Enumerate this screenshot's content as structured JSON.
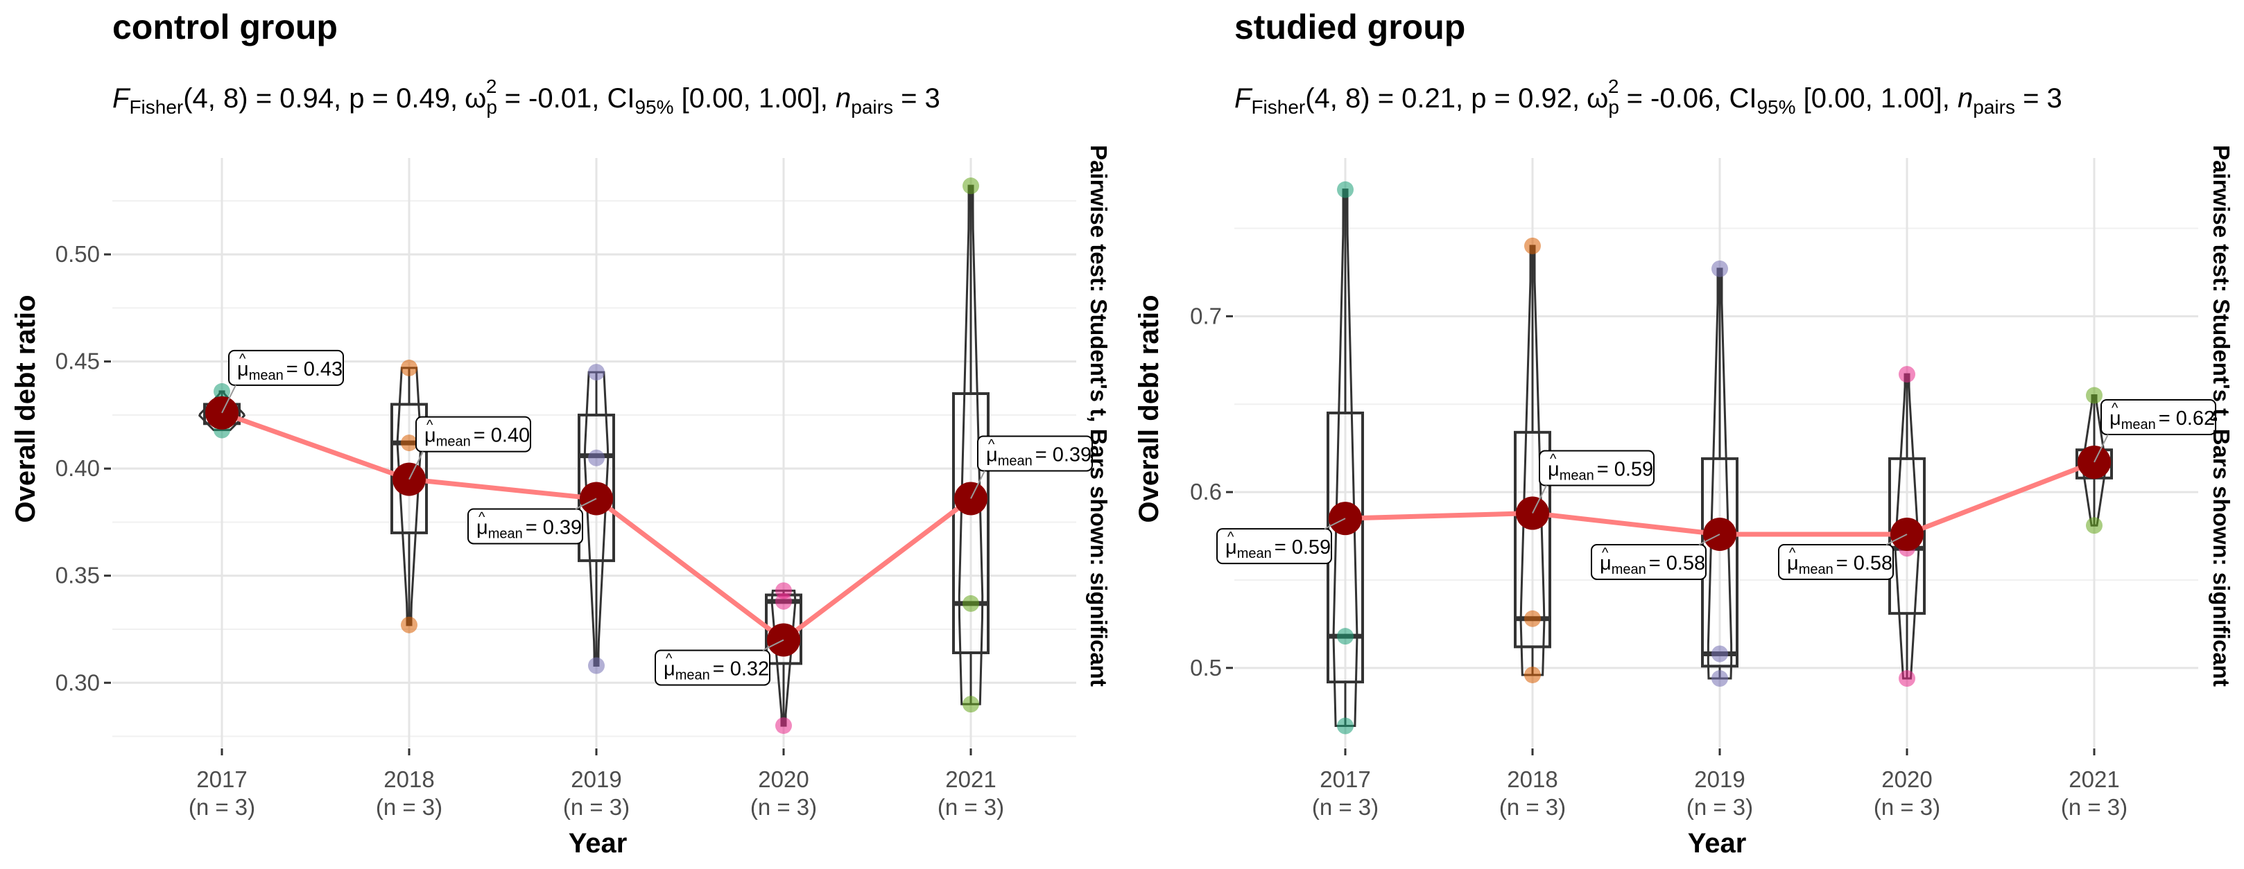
{
  "chart_data": [
    {
      "type": "box-violin-mean",
      "title": "control group",
      "stats": {
        "f_prefix": "F",
        "f_sub": "Fisher",
        "f_args": "(4, 8) = 0.94,",
        "p": " p = 0.49,",
        "omega_sym": "ω",
        "omega_sub": "p",
        "omega_sup": "2",
        "omega_val": " = -0.01,",
        "ci_prefix": " CI",
        "ci_sub": "95%",
        "ci_val": " [0.00, 1.00],",
        "n_prefix": " n",
        "n_sub": "pairs",
        "n_val": " = 3"
      },
      "xlabel": "Year",
      "ylabel": "Overall debt ratio",
      "side_caption": "Pairwise test: Student's t, Bars shown: significant",
      "ylim": [
        0.27,
        0.545
      ],
      "yticks": [
        0.3,
        0.35,
        0.4,
        0.45,
        0.5
      ],
      "yticklabels": [
        "0.30",
        "0.35",
        "0.40",
        "0.45",
        "0.50"
      ],
      "categories": [
        "2017",
        "2018",
        "2019",
        "2020",
        "2021"
      ],
      "n_labels": [
        "(n = 3)",
        "(n = 3)",
        "(n = 3)",
        "(n = 3)",
        "(n = 3)"
      ],
      "mean_label_prefix": "μ",
      "mean_label_sub": "mean",
      "groups": [
        {
          "year": "2017",
          "color": "#1b9e77",
          "points": [
            0.418,
            0.425,
            0.436
          ],
          "q1": 0.421,
          "median": 0.425,
          "q3": 0.43,
          "mean": 0.426,
          "mean_label": "= 0.43",
          "label_side": "right"
        },
        {
          "year": "2018",
          "color": "#d95f02",
          "points": [
            0.327,
            0.412,
            0.447
          ],
          "q1": 0.37,
          "median": 0.412,
          "q3": 0.43,
          "mean": 0.395,
          "mean_label": "= 0.40",
          "label_side": "right"
        },
        {
          "year": "2019",
          "color": "#7570b3",
          "points": [
            0.308,
            0.405,
            0.445
          ],
          "q1": 0.357,
          "median": 0.406,
          "q3": 0.425,
          "mean": 0.386,
          "mean_label": "= 0.39",
          "label_side": "left"
        },
        {
          "year": "2020",
          "color": "#e7298a",
          "points": [
            0.28,
            0.338,
            0.343
          ],
          "q1": 0.309,
          "median": 0.338,
          "q3": 0.341,
          "mean": 0.32,
          "mean_label": "= 0.32",
          "label_side": "left"
        },
        {
          "year": "2021",
          "color": "#66a61e",
          "points": [
            0.29,
            0.337,
            0.532
          ],
          "q1": 0.314,
          "median": 0.337,
          "q3": 0.435,
          "mean": 0.386,
          "mean_label": "= 0.39",
          "label_side": "right"
        }
      ]
    },
    {
      "type": "box-violin-mean",
      "title": "studied group",
      "stats": {
        "f_prefix": "F",
        "f_sub": "Fisher",
        "f_args": "(4, 8) = 0.21,",
        "p": " p = 0.92,",
        "omega_sym": "ω",
        "omega_sub": "p",
        "omega_sup": "2",
        "omega_val": " = -0.06,",
        "ci_prefix": " CI",
        "ci_sub": "95%",
        "ci_val": " [0.00, 1.00],",
        "n_prefix": " n",
        "n_sub": "pairs",
        "n_val": " = 3"
      },
      "xlabel": "Year",
      "ylabel": "Overall debt ratio",
      "side_caption": "Pairwise test: Student's t, Bars shown: significant",
      "ylim": [
        0.455,
        0.79
      ],
      "yticks": [
        0.5,
        0.6,
        0.7
      ],
      "yticklabels": [
        "0.5",
        "0.6",
        "0.7"
      ],
      "categories": [
        "2017",
        "2018",
        "2019",
        "2020",
        "2021"
      ],
      "n_labels": [
        "(n = 3)",
        "(n = 3)",
        "(n = 3)",
        "(n = 3)",
        "(n = 3)"
      ],
      "mean_label_prefix": "μ",
      "mean_label_sub": "mean",
      "groups": [
        {
          "year": "2017",
          "color": "#1b9e77",
          "points": [
            0.467,
            0.518,
            0.772
          ],
          "q1": 0.492,
          "median": 0.518,
          "q3": 0.645,
          "mean": 0.585,
          "mean_label": "= 0.59",
          "label_side": "left"
        },
        {
          "year": "2018",
          "color": "#d95f02",
          "points": [
            0.496,
            0.528,
            0.74
          ],
          "q1": 0.512,
          "median": 0.528,
          "q3": 0.634,
          "mean": 0.588,
          "mean_label": "= 0.59",
          "label_side": "right"
        },
        {
          "year": "2019",
          "color": "#7570b3",
          "points": [
            0.494,
            0.508,
            0.727
          ],
          "q1": 0.501,
          "median": 0.508,
          "q3": 0.619,
          "mean": 0.576,
          "mean_label": "= 0.58",
          "label_side": "left"
        },
        {
          "year": "2020",
          "color": "#e7298a",
          "points": [
            0.494,
            0.568,
            0.667
          ],
          "q1": 0.531,
          "median": 0.568,
          "q3": 0.619,
          "mean": 0.576,
          "mean_label": "= 0.58",
          "label_side": "left"
        },
        {
          "year": "2021",
          "color": "#66a61e",
          "points": [
            0.581,
            0.615,
            0.655
          ],
          "q1": 0.608,
          "median": 0.615,
          "q3": 0.624,
          "mean": 0.617,
          "mean_label": "= 0.62",
          "label_side": "right"
        }
      ]
    }
  ]
}
